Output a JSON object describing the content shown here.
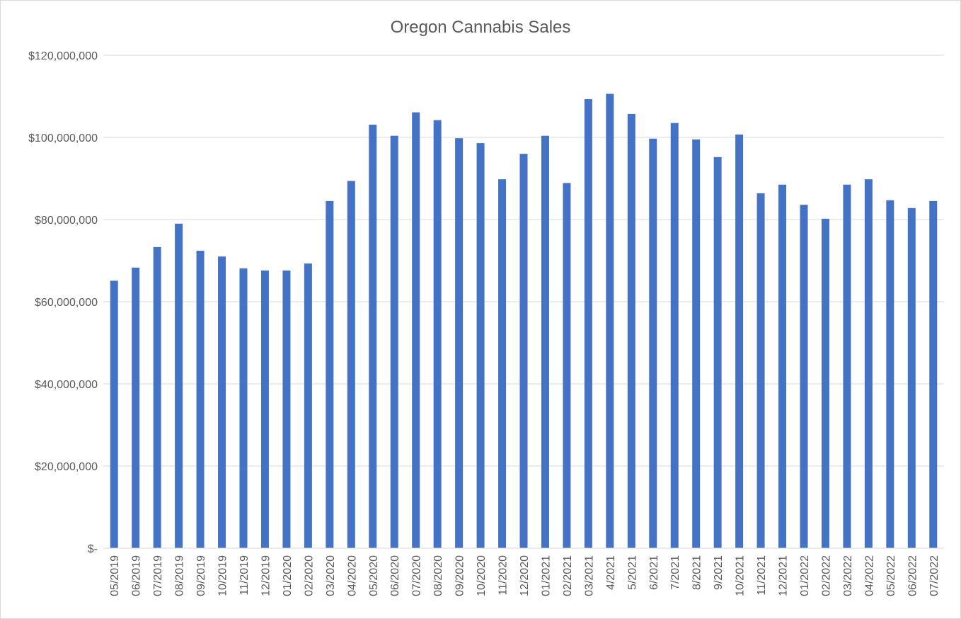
{
  "chart_data": {
    "type": "bar",
    "title": "Oregon Cannabis Sales",
    "xlabel": "",
    "ylabel": "",
    "ylim": [
      0,
      120000000
    ],
    "yticks": [
      0,
      20000000,
      40000000,
      60000000,
      80000000,
      100000000,
      120000000
    ],
    "ytick_labels": [
      "$-",
      "$20,000,000",
      "$40,000,000",
      "$60,000,000",
      "$80,000,000",
      "$100,000,000",
      "$120,000,000"
    ],
    "grid": true,
    "legend": "none",
    "bar_color": "#4472c4",
    "categories": [
      "05/2019",
      "06/2019",
      "07/2019",
      "08/2019",
      "09/2019",
      "10/2019",
      "11/2019",
      "12/2019",
      "01/2020",
      "02/2020",
      "03/2020",
      "04/2020",
      "05/2020",
      "06/2020",
      "07/2020",
      "08/2020",
      "09/2020",
      "10/2020",
      "11/2020",
      "12/2020",
      "01/2021",
      "02/2021",
      "03/2021",
      "4/2021",
      "5/2021",
      "6/2021",
      "7/2021",
      "8/2021",
      "9/2021",
      "10/2021",
      "11/2021",
      "12/2021",
      "01/2022",
      "02/2022",
      "03/2022",
      "04/2022",
      "05/2022",
      "06/2022",
      "07/2022"
    ],
    "values": [
      65100000,
      68300000,
      73300000,
      79000000,
      72400000,
      71000000,
      68100000,
      67600000,
      67600000,
      69300000,
      84500000,
      89400000,
      103100000,
      100400000,
      106100000,
      104200000,
      99800000,
      98600000,
      89800000,
      96000000,
      100400000,
      88900000,
      109300000,
      110600000,
      105700000,
      99700000,
      103500000,
      99500000,
      95200000,
      100700000,
      86400000,
      88500000,
      83600000,
      80200000,
      88500000,
      89800000,
      84700000,
      82800000,
      84500000
    ]
  }
}
